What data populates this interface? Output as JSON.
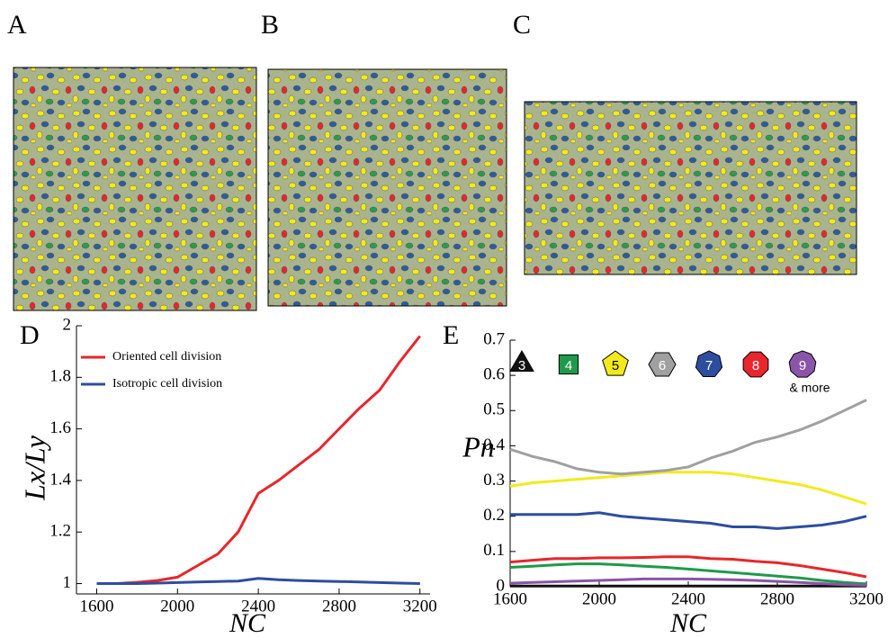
{
  "panel_labels": [
    "A",
    "B",
    "C",
    "D",
    "E"
  ],
  "chart_data": [
    {
      "type": "line",
      "x_label": "NC",
      "y_label": "Lx/Ly",
      "x": [
        1600,
        1700,
        1800,
        1900,
        2000,
        2100,
        2200,
        2300,
        2400,
        2500,
        2600,
        2700,
        2800,
        2900,
        3000,
        3100,
        3200
      ],
      "series": [
        {
          "name": "Oriented cell division",
          "color": "#e8262b",
          "values": [
            1,
            1,
            1.005,
            1.012,
            1.025,
            1.07,
            1.115,
            1.2,
            1.35,
            1.4,
            1.46,
            1.52,
            1.6,
            1.68,
            1.75,
            1.86,
            1.96
          ]
        },
        {
          "name": "Isotropic cell division",
          "color": "#2e4da0",
          "values": [
            1,
            1,
            1,
            1.002,
            1.004,
            1.006,
            1.008,
            1.01,
            1.02,
            1.015,
            1.012,
            1.01,
            1.008,
            1.006,
            1.004,
            1.002,
            1
          ]
        }
      ],
      "xlim": [
        1500,
        3250
      ],
      "xticks": [
        1600,
        2000,
        2400,
        2800,
        3200
      ],
      "ylim": [
        0.96,
        2.0
      ],
      "yticks": [
        1,
        1.2,
        1.4,
        1.6,
        1.8,
        2
      ],
      "legend": "upper left"
    },
    {
      "type": "line",
      "x_label": "NC",
      "y_label": "Pn",
      "legend_note": "& more",
      "x": [
        1600,
        1700,
        1800,
        1900,
        2000,
        2100,
        2200,
        2300,
        2400,
        2500,
        2600,
        2700,
        2800,
        2900,
        3000,
        3100,
        3200
      ],
      "series": [
        {
          "name": "3",
          "color": "#111111",
          "values": [
            0.002,
            0.002,
            0.002,
            0.002,
            0.002,
            0.002,
            0.002,
            0.002,
            0.002,
            0.002,
            0.002,
            0.002,
            0.002,
            0.002,
            0.002,
            0.002,
            0.002
          ]
        },
        {
          "name": "4",
          "color": "#1f9a4a",
          "values": [
            0.055,
            0.058,
            0.062,
            0.065,
            0.065,
            0.062,
            0.058,
            0.055,
            0.05,
            0.045,
            0.04,
            0.035,
            0.03,
            0.025,
            0.018,
            0.012,
            0.008
          ]
        },
        {
          "name": "5",
          "color": "#f2ea1c",
          "values": [
            0.285,
            0.295,
            0.3,
            0.305,
            0.31,
            0.315,
            0.32,
            0.325,
            0.325,
            0.325,
            0.32,
            0.31,
            0.3,
            0.29,
            0.275,
            0.255,
            0.235
          ]
        },
        {
          "name": "6",
          "color": "#a0a0a0",
          "values": [
            0.39,
            0.37,
            0.355,
            0.335,
            0.325,
            0.32,
            0.325,
            0.33,
            0.34,
            0.365,
            0.385,
            0.41,
            0.425,
            0.445,
            0.47,
            0.5,
            0.53
          ]
        },
        {
          "name": "7",
          "color": "#2e4da0",
          "values": [
            0.205,
            0.205,
            0.205,
            0.205,
            0.21,
            0.2,
            0.195,
            0.19,
            0.185,
            0.18,
            0.17,
            0.17,
            0.165,
            0.17,
            0.175,
            0.185,
            0.2
          ]
        },
        {
          "name": "8",
          "color": "#e8262b",
          "values": [
            0.07,
            0.075,
            0.08,
            0.08,
            0.082,
            0.082,
            0.083,
            0.085,
            0.085,
            0.08,
            0.078,
            0.072,
            0.068,
            0.06,
            0.05,
            0.04,
            0.028
          ]
        },
        {
          "name": "9",
          "color": "#8a55a8",
          "values": [
            0.01,
            0.012,
            0.014,
            0.016,
            0.018,
            0.02,
            0.022,
            0.022,
            0.022,
            0.021,
            0.02,
            0.018,
            0.015,
            0.012,
            0.009,
            0.006,
            0.004
          ]
        }
      ],
      "xlim": [
        1600,
        3200
      ],
      "xticks": [
        1600,
        2000,
        2400,
        2800,
        3200
      ],
      "ylim": [
        0,
        0.7
      ],
      "yticks": [
        0,
        0.1,
        0.2,
        0.3,
        0.4,
        0.5,
        0.6,
        0.7
      ],
      "legend": "top"
    }
  ]
}
